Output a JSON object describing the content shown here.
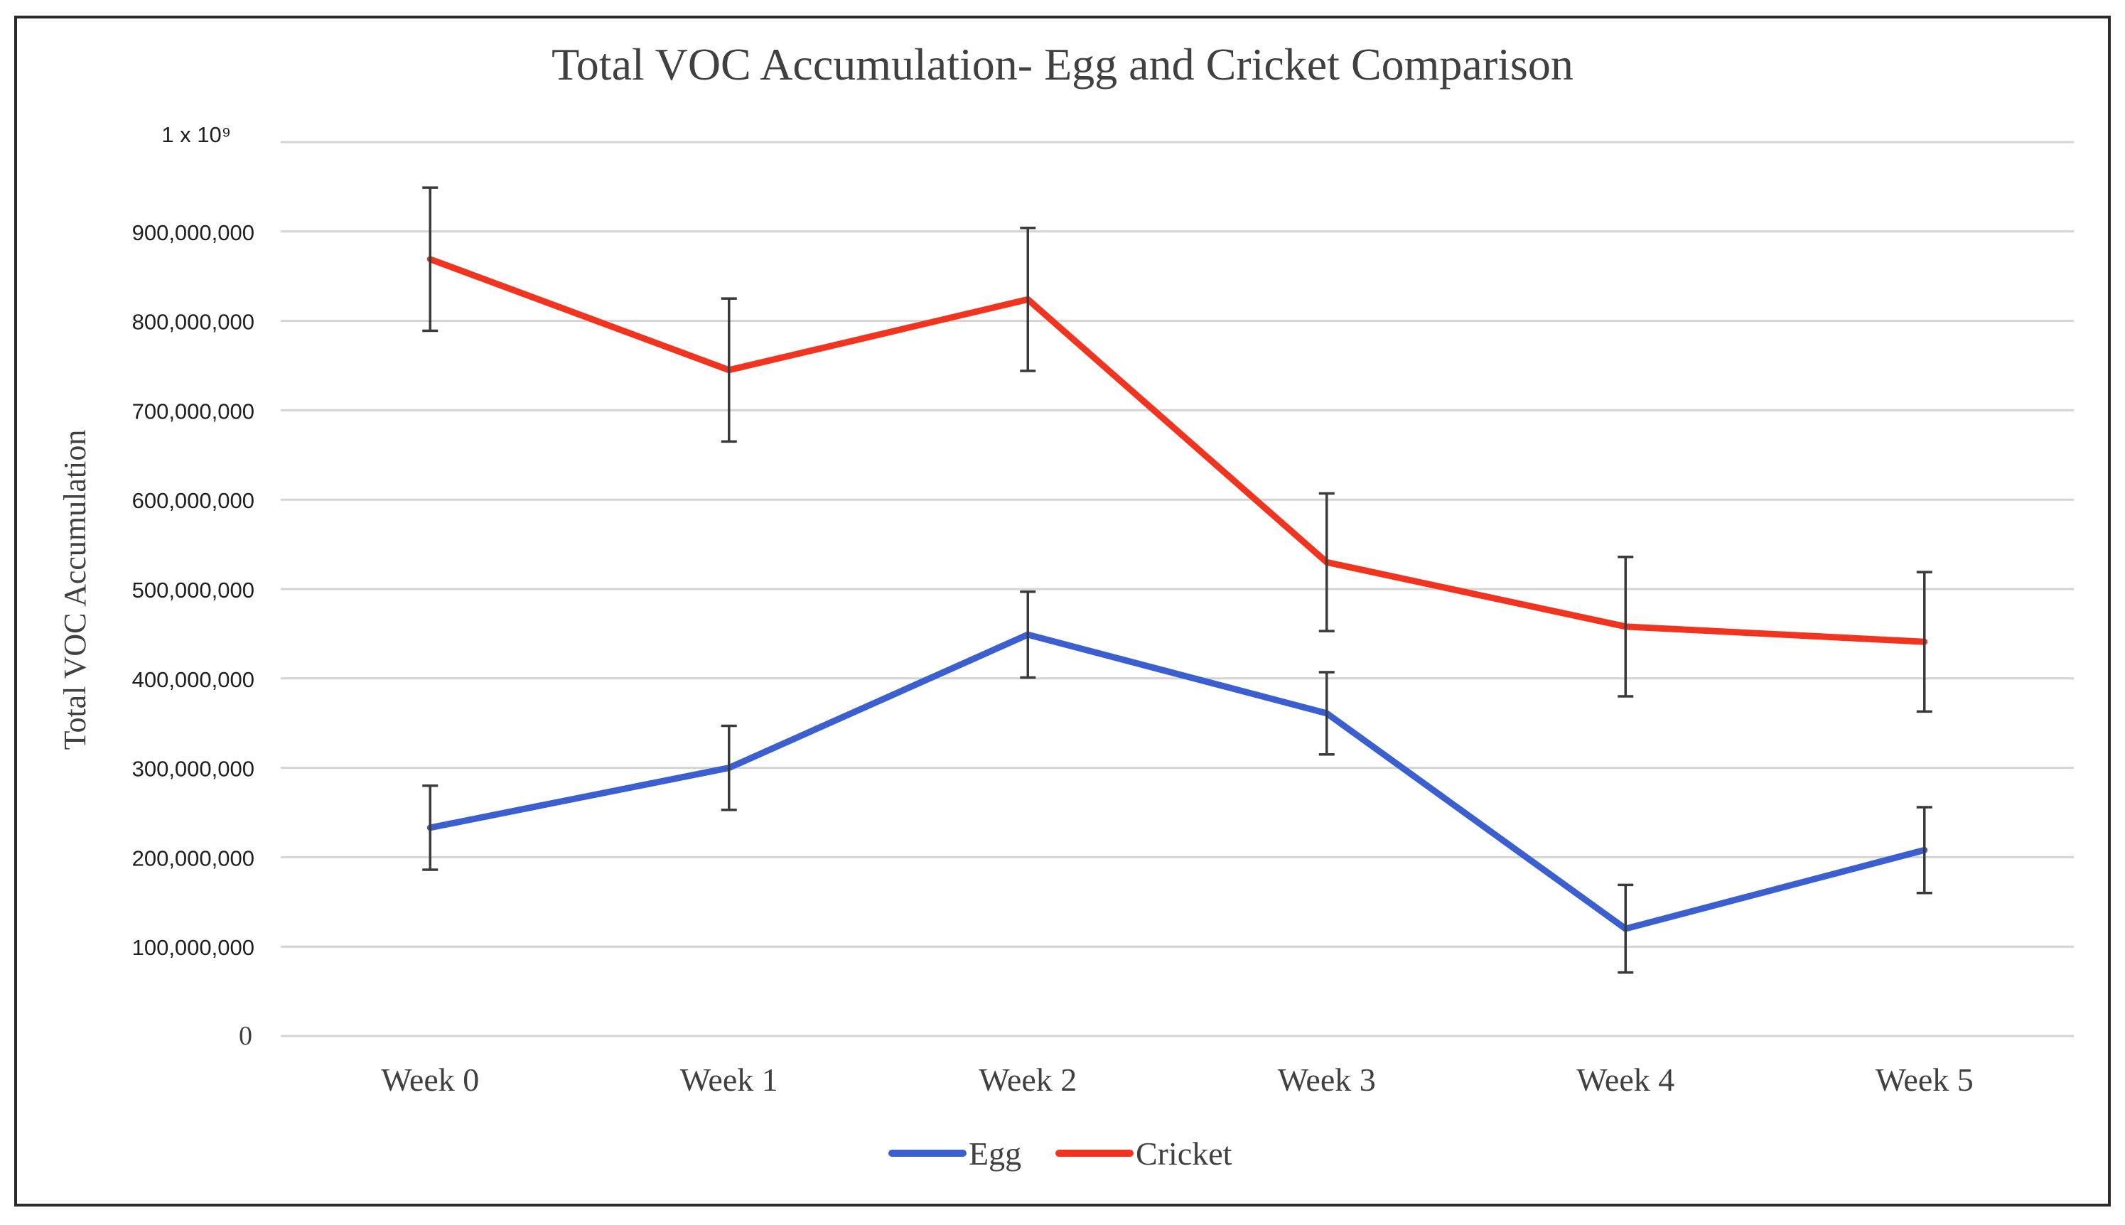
{
  "chart_data": {
    "type": "line",
    "title": "Total VOC Accumulation- Egg and Cricket Comparison",
    "xlabel": "",
    "ylabel": "Total VOC Accumulation",
    "y_top_label": "1 x 10⁹",
    "ylim": [
      0,
      1000000000
    ],
    "y_ticks": [
      {
        "value": 0,
        "label": "0"
      },
      {
        "value": 100000000,
        "label": "100,000,000"
      },
      {
        "value": 200000000,
        "label": "200,000,000"
      },
      {
        "value": 300000000,
        "label": "300,000,000"
      },
      {
        "value": 400000000,
        "label": "400,000,000"
      },
      {
        "value": 500000000,
        "label": "500,000,000"
      },
      {
        "value": 600000000,
        "label": "600,000,000"
      },
      {
        "value": 700000000,
        "label": "700,000,000"
      },
      {
        "value": 800000000,
        "label": "800,000,000"
      },
      {
        "value": 900000000,
        "label": "900,000,000"
      },
      {
        "value": 1000000000,
        "label": ""
      }
    ],
    "categories": [
      "Week 0",
      "Week 1",
      "Week 2",
      "Week 3",
      "Week 4",
      "Week 5"
    ],
    "grid": true,
    "legend_position": "bottom",
    "series": [
      {
        "name": "Egg",
        "color": "#3b5fcf",
        "values": [
          233000000,
          300000000,
          449000000,
          361000000,
          120000000,
          208000000
        ],
        "error": [
          47000000,
          47000000,
          48000000,
          46000000,
          49000000,
          48000000
        ]
      },
      {
        "name": "Cricket",
        "color": "#f0341f",
        "values": [
          869000000,
          745000000,
          824000000,
          530000000,
          458000000,
          441000000
        ],
        "error": [
          80000000,
          80000000,
          80000000,
          77000000,
          78000000,
          78000000
        ]
      }
    ],
    "error_bar_color": "#3a3a3a"
  }
}
